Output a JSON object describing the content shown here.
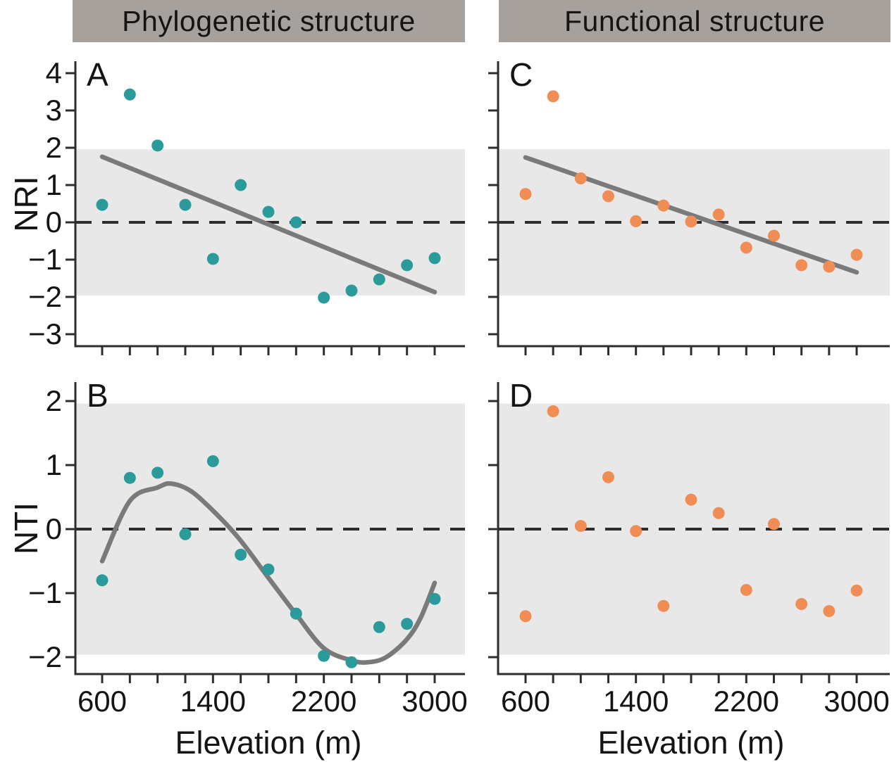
{
  "headers": {
    "left": "Phylogenetic structure",
    "right": "Functional structure"
  },
  "axis": {
    "x_label": "Elevation (m)",
    "x_tick_label_values": [
      600,
      1400,
      2200,
      3000
    ],
    "x_ticks_all": [
      600,
      800,
      1000,
      1200,
      1400,
      1600,
      1800,
      2000,
      2200,
      2400,
      2600,
      2800,
      3000
    ],
    "x_range": [
      600,
      3000
    ]
  },
  "colors": {
    "teal": "#2a9b9a",
    "orange": "#ef8d55",
    "band": "#e9e8e8",
    "header_bg": "#a7a19d",
    "trend": "#7a7a7a",
    "dashed": "#2d2d2d",
    "axis": "#2d2d2d",
    "text": "#1a1a1a"
  },
  "chart_data": [
    {
      "panel": "A",
      "type": "scatter",
      "title_column": "Phylogenetic structure",
      "ylabel": "NRI",
      "yticks": [
        4,
        3,
        2,
        1,
        0,
        -1,
        -2,
        -3
      ],
      "ylim": [
        -3.4,
        4.3
      ],
      "band": [
        -1.96,
        1.96
      ],
      "zero_dashed": true,
      "point_color_key": "teal",
      "x": [
        600,
        800,
        1000,
        1200,
        1400,
        1600,
        1800,
        2000,
        2200,
        2400,
        2600,
        2800,
        3000
      ],
      "y": [
        0.47,
        3.43,
        2.06,
        0.47,
        -0.98,
        1.0,
        0.28,
        0.0,
        -2.02,
        -1.83,
        -1.53,
        -1.15,
        -0.96
      ],
      "trend": {
        "shape": "linear",
        "x": [
          600,
          3000
        ],
        "y": [
          1.76,
          -1.87
        ]
      }
    },
    {
      "panel": "B",
      "type": "scatter",
      "title_column": "Phylogenetic structure",
      "ylabel": "NTI",
      "yticks": [
        2,
        1,
        0,
        -1,
        -2
      ],
      "ylim": [
        -2.3,
        2.3
      ],
      "band": [
        -1.96,
        1.96
      ],
      "zero_dashed": true,
      "point_color_key": "teal",
      "x": [
        600,
        800,
        1000,
        1200,
        1400,
        1600,
        1800,
        2000,
        2200,
        2400,
        2600,
        2800,
        3000
      ],
      "y": [
        -0.8,
        0.8,
        0.88,
        -0.08,
        1.06,
        -0.4,
        -0.63,
        -1.32,
        -1.98,
        -2.08,
        -1.53,
        -1.48,
        -1.09
      ],
      "trend": {
        "shape": "smooth",
        "points": [
          [
            600,
            -0.5
          ],
          [
            800,
            0.44
          ],
          [
            1000,
            0.65
          ],
          [
            1100,
            0.71
          ],
          [
            1250,
            0.58
          ],
          [
            1450,
            0.18
          ],
          [
            1600,
            -0.18
          ],
          [
            1800,
            -0.76
          ],
          [
            2000,
            -1.33
          ],
          [
            2200,
            -1.86
          ],
          [
            2400,
            -2.05
          ],
          [
            2520,
            -2.08
          ],
          [
            2650,
            -2.0
          ],
          [
            2800,
            -1.72
          ],
          [
            2900,
            -1.38
          ],
          [
            3000,
            -0.84
          ]
        ]
      }
    },
    {
      "panel": "C",
      "type": "scatter",
      "title_column": "Functional structure",
      "ylabel": "",
      "yticks": [
        4,
        3,
        2,
        1,
        0,
        -1,
        -2,
        -3
      ],
      "ylim": [
        -3.4,
        4.3
      ],
      "band": [
        -1.96,
        1.96
      ],
      "zero_dashed": true,
      "point_color_key": "orange",
      "x": [
        600,
        800,
        1000,
        1200,
        1400,
        1600,
        1800,
        2000,
        2200,
        2400,
        2600,
        2800,
        3000
      ],
      "y": [
        0.76,
        3.38,
        1.18,
        0.7,
        0.03,
        0.45,
        0.02,
        0.21,
        -0.68,
        -0.36,
        -1.15,
        -1.19,
        -0.87
      ],
      "trend": {
        "shape": "linear",
        "x": [
          600,
          3000
        ],
        "y": [
          1.74,
          -1.34
        ]
      }
    },
    {
      "panel": "D",
      "type": "scatter",
      "title_column": "Functional structure",
      "ylabel": "",
      "yticks": [
        2,
        1,
        0,
        -1,
        -2
      ],
      "ylim": [
        -2.3,
        2.3
      ],
      "band": [
        -1.96,
        1.96
      ],
      "zero_dashed": true,
      "point_color_key": "orange",
      "x": [
        600,
        800,
        1000,
        1200,
        1400,
        1600,
        1800,
        2000,
        2200,
        2400,
        2600,
        2800,
        3000
      ],
      "y": [
        -1.36,
        1.84,
        0.05,
        0.81,
        -0.03,
        -1.2,
        0.46,
        0.25,
        -0.95,
        0.08,
        -1.17,
        -1.28,
        -0.96
      ],
      "trend": null
    }
  ]
}
